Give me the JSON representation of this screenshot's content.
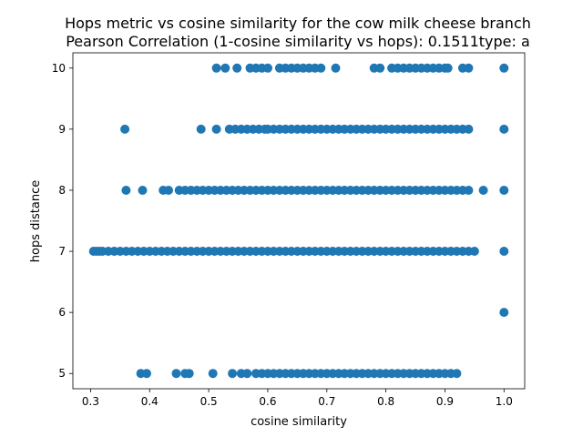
{
  "chart_data": {
    "type": "scatter",
    "title": "Hops metric vs cosine similarity for the cow milk cheese branch",
    "subtitle": "Pearson Correlation (1-cosine similarity vs hops): 0.1511type: a",
    "xlabel": "cosine similarity",
    "ylabel": "hops distance",
    "xlim": [
      0.27,
      1.035
    ],
    "ylim": [
      4.75,
      10.25
    ],
    "xticks": [
      0.3,
      0.4,
      0.5,
      0.6,
      0.7,
      0.8,
      0.9,
      1.0
    ],
    "xtick_labels": [
      "0.3",
      "0.4",
      "0.5",
      "0.6",
      "0.7",
      "0.8",
      "0.9",
      "1.0"
    ],
    "yticks": [
      5,
      6,
      7,
      8,
      9,
      10
    ],
    "ytick_labels": [
      "5",
      "6",
      "7",
      "8",
      "9",
      "10"
    ],
    "grid": false,
    "marker_color": "#1f77b4",
    "series": [
      {
        "points": [
          [
            0.385,
            5
          ],
          [
            0.395,
            5
          ],
          [
            0.445,
            5
          ],
          [
            0.46,
            5
          ],
          [
            0.467,
            5
          ],
          [
            0.507,
            5
          ],
          [
            0.54,
            5
          ],
          [
            0.555,
            5
          ],
          [
            0.565,
            5
          ],
          [
            0.58,
            5
          ],
          [
            0.59,
            5
          ],
          [
            0.6,
            5
          ],
          [
            0.61,
            5
          ],
          [
            0.62,
            5
          ],
          [
            0.63,
            5
          ],
          [
            0.64,
            5
          ],
          [
            0.65,
            5
          ],
          [
            0.66,
            5
          ],
          [
            0.67,
            5
          ],
          [
            0.68,
            5
          ],
          [
            0.69,
            5
          ],
          [
            0.7,
            5
          ],
          [
            0.71,
            5
          ],
          [
            0.72,
            5
          ],
          [
            0.73,
            5
          ],
          [
            0.74,
            5
          ],
          [
            0.75,
            5
          ],
          [
            0.76,
            5
          ],
          [
            0.77,
            5
          ],
          [
            0.78,
            5
          ],
          [
            0.79,
            5
          ],
          [
            0.8,
            5
          ],
          [
            0.81,
            5
          ],
          [
            0.82,
            5
          ],
          [
            0.83,
            5
          ],
          [
            0.84,
            5
          ],
          [
            0.85,
            5
          ],
          [
            0.86,
            5
          ],
          [
            0.87,
            5
          ],
          [
            0.88,
            5
          ],
          [
            0.89,
            5
          ],
          [
            0.9,
            5
          ],
          [
            0.91,
            5
          ],
          [
            0.92,
            5
          ],
          [
            1.0,
            6
          ],
          [
            0.305,
            7
          ],
          [
            0.31,
            7
          ],
          [
            0.315,
            7
          ],
          [
            0.32,
            7
          ],
          [
            0.33,
            7
          ],
          [
            0.34,
            7
          ],
          [
            0.35,
            7
          ],
          [
            0.36,
            7
          ],
          [
            0.37,
            7
          ],
          [
            0.38,
            7
          ],
          [
            0.39,
            7
          ],
          [
            0.4,
            7
          ],
          [
            0.41,
            7
          ],
          [
            0.42,
            7
          ],
          [
            0.43,
            7
          ],
          [
            0.44,
            7
          ],
          [
            0.45,
            7
          ],
          [
            0.46,
            7
          ],
          [
            0.47,
            7
          ],
          [
            0.48,
            7
          ],
          [
            0.49,
            7
          ],
          [
            0.5,
            7
          ],
          [
            0.51,
            7
          ],
          [
            0.52,
            7
          ],
          [
            0.53,
            7
          ],
          [
            0.54,
            7
          ],
          [
            0.55,
            7
          ],
          [
            0.56,
            7
          ],
          [
            0.57,
            7
          ],
          [
            0.58,
            7
          ],
          [
            0.59,
            7
          ],
          [
            0.6,
            7
          ],
          [
            0.61,
            7
          ],
          [
            0.62,
            7
          ],
          [
            0.63,
            7
          ],
          [
            0.64,
            7
          ],
          [
            0.65,
            7
          ],
          [
            0.66,
            7
          ],
          [
            0.67,
            7
          ],
          [
            0.68,
            7
          ],
          [
            0.69,
            7
          ],
          [
            0.7,
            7
          ],
          [
            0.71,
            7
          ],
          [
            0.72,
            7
          ],
          [
            0.73,
            7
          ],
          [
            0.74,
            7
          ],
          [
            0.75,
            7
          ],
          [
            0.76,
            7
          ],
          [
            0.77,
            7
          ],
          [
            0.78,
            7
          ],
          [
            0.79,
            7
          ],
          [
            0.8,
            7
          ],
          [
            0.81,
            7
          ],
          [
            0.82,
            7
          ],
          [
            0.83,
            7
          ],
          [
            0.84,
            7
          ],
          [
            0.85,
            7
          ],
          [
            0.86,
            7
          ],
          [
            0.87,
            7
          ],
          [
            0.88,
            7
          ],
          [
            0.89,
            7
          ],
          [
            0.9,
            7
          ],
          [
            0.91,
            7
          ],
          [
            0.92,
            7
          ],
          [
            0.93,
            7
          ],
          [
            0.94,
            7
          ],
          [
            0.95,
            7
          ],
          [
            1.0,
            7
          ],
          [
            0.36,
            8
          ],
          [
            0.388,
            8
          ],
          [
            0.423,
            8
          ],
          [
            0.432,
            8
          ],
          [
            0.45,
            8
          ],
          [
            0.46,
            8
          ],
          [
            0.47,
            8
          ],
          [
            0.48,
            8
          ],
          [
            0.49,
            8
          ],
          [
            0.5,
            8
          ],
          [
            0.51,
            8
          ],
          [
            0.52,
            8
          ],
          [
            0.53,
            8
          ],
          [
            0.54,
            8
          ],
          [
            0.55,
            8
          ],
          [
            0.56,
            8
          ],
          [
            0.57,
            8
          ],
          [
            0.58,
            8
          ],
          [
            0.59,
            8
          ],
          [
            0.6,
            8
          ],
          [
            0.61,
            8
          ],
          [
            0.62,
            8
          ],
          [
            0.63,
            8
          ],
          [
            0.64,
            8
          ],
          [
            0.65,
            8
          ],
          [
            0.66,
            8
          ],
          [
            0.67,
            8
          ],
          [
            0.68,
            8
          ],
          [
            0.69,
            8
          ],
          [
            0.7,
            8
          ],
          [
            0.71,
            8
          ],
          [
            0.72,
            8
          ],
          [
            0.73,
            8
          ],
          [
            0.74,
            8
          ],
          [
            0.75,
            8
          ],
          [
            0.76,
            8
          ],
          [
            0.77,
            8
          ],
          [
            0.78,
            8
          ],
          [
            0.79,
            8
          ],
          [
            0.8,
            8
          ],
          [
            0.81,
            8
          ],
          [
            0.82,
            8
          ],
          [
            0.83,
            8
          ],
          [
            0.84,
            8
          ],
          [
            0.85,
            8
          ],
          [
            0.86,
            8
          ],
          [
            0.87,
            8
          ],
          [
            0.88,
            8
          ],
          [
            0.89,
            8
          ],
          [
            0.9,
            8
          ],
          [
            0.91,
            8
          ],
          [
            0.92,
            8
          ],
          [
            0.93,
            8
          ],
          [
            0.94,
            8
          ],
          [
            0.965,
            8
          ],
          [
            1.0,
            8
          ],
          [
            0.358,
            9
          ],
          [
            0.487,
            9
          ],
          [
            0.513,
            9
          ],
          [
            0.535,
            9
          ],
          [
            0.545,
            9
          ],
          [
            0.555,
            9
          ],
          [
            0.565,
            9
          ],
          [
            0.575,
            9
          ],
          [
            0.585,
            9
          ],
          [
            0.595,
            9
          ],
          [
            0.6,
            9
          ],
          [
            0.61,
            9
          ],
          [
            0.62,
            9
          ],
          [
            0.63,
            9
          ],
          [
            0.64,
            9
          ],
          [
            0.65,
            9
          ],
          [
            0.66,
            9
          ],
          [
            0.67,
            9
          ],
          [
            0.68,
            9
          ],
          [
            0.69,
            9
          ],
          [
            0.7,
            9
          ],
          [
            0.71,
            9
          ],
          [
            0.72,
            9
          ],
          [
            0.73,
            9
          ],
          [
            0.74,
            9
          ],
          [
            0.75,
            9
          ],
          [
            0.76,
            9
          ],
          [
            0.77,
            9
          ],
          [
            0.78,
            9
          ],
          [
            0.79,
            9
          ],
          [
            0.8,
            9
          ],
          [
            0.81,
            9
          ],
          [
            0.82,
            9
          ],
          [
            0.83,
            9
          ],
          [
            0.84,
            9
          ],
          [
            0.85,
            9
          ],
          [
            0.86,
            9
          ],
          [
            0.87,
            9
          ],
          [
            0.88,
            9
          ],
          [
            0.89,
            9
          ],
          [
            0.9,
            9
          ],
          [
            0.91,
            9
          ],
          [
            0.92,
            9
          ],
          [
            0.93,
            9
          ],
          [
            0.94,
            9
          ],
          [
            1.0,
            9
          ],
          [
            0.513,
            10
          ],
          [
            0.528,
            10
          ],
          [
            0.548,
            10
          ],
          [
            0.57,
            10
          ],
          [
            0.58,
            10
          ],
          [
            0.59,
            10
          ],
          [
            0.6,
            10
          ],
          [
            0.62,
            10
          ],
          [
            0.63,
            10
          ],
          [
            0.64,
            10
          ],
          [
            0.65,
            10
          ],
          [
            0.66,
            10
          ],
          [
            0.67,
            10
          ],
          [
            0.68,
            10
          ],
          [
            0.69,
            10
          ],
          [
            0.715,
            10
          ],
          [
            0.78,
            10
          ],
          [
            0.79,
            10
          ],
          [
            0.81,
            10
          ],
          [
            0.82,
            10
          ],
          [
            0.83,
            10
          ],
          [
            0.84,
            10
          ],
          [
            0.85,
            10
          ],
          [
            0.86,
            10
          ],
          [
            0.87,
            10
          ],
          [
            0.88,
            10
          ],
          [
            0.89,
            10
          ],
          [
            0.9,
            10
          ],
          [
            0.905,
            10
          ],
          [
            0.93,
            10
          ],
          [
            0.94,
            10
          ],
          [
            1.0,
            10
          ]
        ]
      }
    ]
  }
}
